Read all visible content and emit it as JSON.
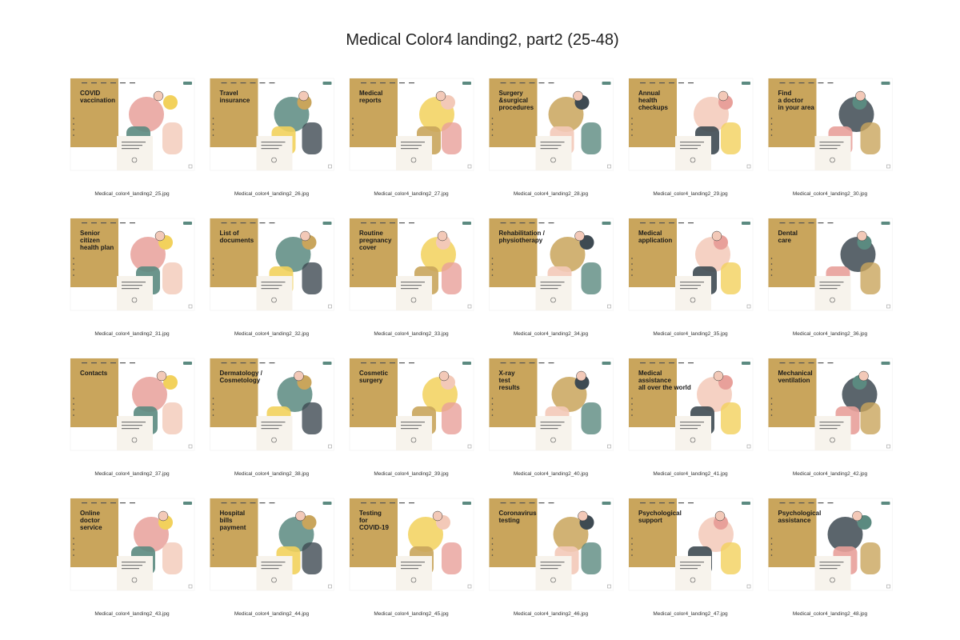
{
  "title": "Medical Color4 landing2, part2 (25-48)",
  "items": [
    {
      "heading": [
        "COVID",
        "vaccination"
      ],
      "file": "Medical_color4_landing2_25.jpg"
    },
    {
      "heading": [
        "Travel",
        "insurance"
      ],
      "file": "Medical_color4_landing2_26.jpg"
    },
    {
      "heading": [
        "Medical",
        "reports"
      ],
      "file": "Medical_color4_landing2_27.jpg"
    },
    {
      "heading": [
        "Surgery",
        "&surgical",
        "procedures"
      ],
      "file": "Medical_color4_landing2_28.jpg"
    },
    {
      "heading": [
        "Annual",
        "health",
        "checkups"
      ],
      "file": "Medical_color4_landing2_29.jpg"
    },
    {
      "heading": [
        "Find",
        "a doctor",
        "in your area"
      ],
      "file": "Medical_color4_landing2_30.jpg"
    },
    {
      "heading": [
        "Senior",
        "citizen",
        "health plan"
      ],
      "file": "Medical_color4_landing2_31.jpg"
    },
    {
      "heading": [
        "List of",
        "documents"
      ],
      "file": "Medical_color4_landing2_32.jpg"
    },
    {
      "heading": [
        "Routine",
        "pregnancy",
        "cover"
      ],
      "file": "Medical_color4_landing2_33.jpg"
    },
    {
      "heading": [
        "Rehabilitation /",
        "physiotherapy"
      ],
      "file": "Medical_color4_landing2_34.jpg"
    },
    {
      "heading": [
        "Medical",
        "application"
      ],
      "file": "Medical_color4_landing2_35.jpg"
    },
    {
      "heading": [
        "Dental",
        "care"
      ],
      "file": "Medical_color4_landing2_36.jpg"
    },
    {
      "heading": [
        "Contacts"
      ],
      "file": "Medical_color4_landing2_37.jpg"
    },
    {
      "heading": [
        "Dermatology /",
        "Cosmetology"
      ],
      "file": "Medical_color4_landing2_38.jpg"
    },
    {
      "heading": [
        "Cosmetic",
        "surgery"
      ],
      "file": "Medical_color4_landing2_39.jpg"
    },
    {
      "heading": [
        "X-ray",
        "test",
        "results"
      ],
      "file": "Medical_color4_landing2_40.jpg"
    },
    {
      "heading": [
        "Medical",
        "assistance",
        "all over the world"
      ],
      "file": "Medical_color4_landing2_41.jpg"
    },
    {
      "heading": [
        "Mechanical",
        "ventilation"
      ],
      "file": "Medical_color4_landing2_42.jpg"
    },
    {
      "heading": [
        "Online",
        "doctor",
        "service"
      ],
      "file": "Medical_color4_landing2_43.jpg"
    },
    {
      "heading": [
        "Hospital",
        "bills",
        "payment"
      ],
      "file": "Medical_color4_landing2_44.jpg"
    },
    {
      "heading": [
        "Testing",
        "for",
        "COVID-19"
      ],
      "file": "Medical_color4_landing2_45.jpg"
    },
    {
      "heading": [
        "Coronavirus",
        "testing"
      ],
      "file": "Medical_color4_landing2_46.jpg"
    },
    {
      "heading": [
        "Psychological",
        "support"
      ],
      "file": "Medical_color4_landing2_47.jpg"
    },
    {
      "heading": [
        "Psychological",
        "assistance"
      ],
      "file": "Medical_color4_landing2_48.jpg"
    }
  ]
}
